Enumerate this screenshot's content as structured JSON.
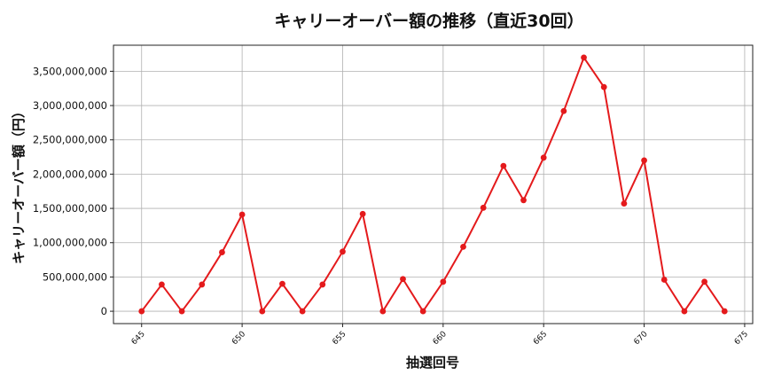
{
  "chart_data": {
    "type": "line",
    "title": "キャリーオーバー額の推移（直近30回）",
    "xlabel": "抽選回号",
    "ylabel": "キャリーオーバー額（円）",
    "xlim": [
      643.6,
      675.4
    ],
    "ylim": [
      -180000000,
      3880000000
    ],
    "xticks": [
      645,
      650,
      655,
      660,
      665,
      670,
      675
    ],
    "yticks": [
      0,
      500000000,
      1000000000,
      1500000000,
      2000000000,
      2500000000,
      3000000000,
      3500000000
    ],
    "grid": true,
    "series": [
      {
        "color": "#e41a1c",
        "x": [
          645,
          646,
          647,
          648,
          649,
          650,
          651,
          652,
          653,
          654,
          655,
          656,
          657,
          658,
          659,
          660,
          661,
          662,
          663,
          664,
          665,
          666,
          667,
          668,
          669,
          670,
          671,
          672,
          673,
          674
        ],
        "values": [
          0,
          390000000,
          0,
          390000000,
          860000000,
          1410000000,
          0,
          400000000,
          0,
          390000000,
          870000000,
          1420000000,
          0,
          470000000,
          0,
          430000000,
          940000000,
          1510000000,
          2120000000,
          1620000000,
          2240000000,
          2920000000,
          3700000000,
          3270000000,
          1570000000,
          2200000000,
          460000000,
          0,
          430000000,
          0
        ]
      }
    ]
  }
}
